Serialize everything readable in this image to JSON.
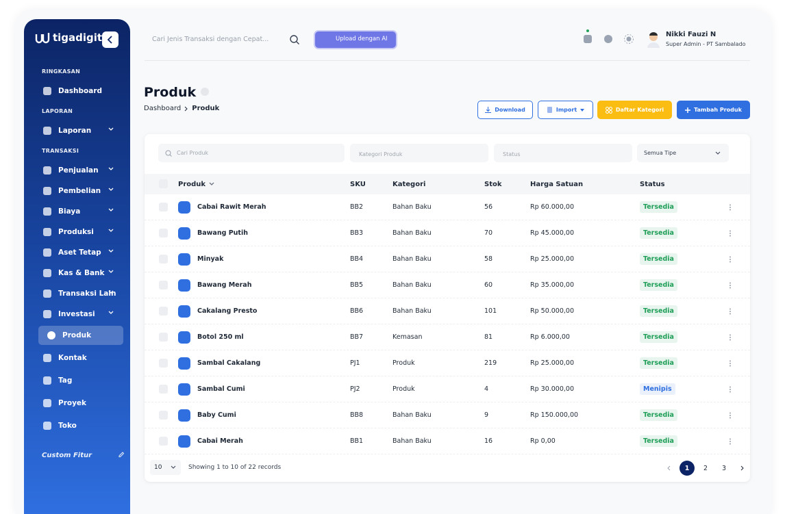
{
  "sidebar": {
    "logo": "tigadigit",
    "groups": [
      {
        "title": "RINGKASAN",
        "items": [
          {
            "label": "Dashboard",
            "submenu": false
          }
        ]
      },
      {
        "title": "LAPORAN",
        "items": [
          {
            "label": "Laporan",
            "submenu": true
          }
        ]
      },
      {
        "title": "TRANSAKSI",
        "items": [
          {
            "label": "Penjualan",
            "submenu": true
          },
          {
            "label": "Pembelian",
            "submenu": true
          },
          {
            "label": "Biaya",
            "submenu": true
          },
          {
            "label": "Produksi",
            "submenu": true
          },
          {
            "label": "Aset Tetap",
            "submenu": true
          },
          {
            "label": "Kas & Bank",
            "submenu": true
          },
          {
            "label": "Transaksi Lain",
            "submenu": true
          },
          {
            "label": "Investasi",
            "submenu": true
          },
          {
            "label": "Produk",
            "submenu": false,
            "active": true
          },
          {
            "label": "Kontak",
            "submenu": false
          },
          {
            "label": "Tag",
            "submenu": false
          },
          {
            "label": "Proyek",
            "submenu": false
          },
          {
            "label": "Toko",
            "submenu": false
          }
        ]
      }
    ],
    "custom": "Custom Fitur"
  },
  "topbar": {
    "search": "Cari Jenis Transaksi dengan Cepat...",
    "ai_button": "Upload dengan AI",
    "user": {
      "name": "Nikki Fauzi N",
      "role": "Super Admin - PT Sambalado"
    }
  },
  "page": {
    "title": "Produk",
    "breadcrumb": [
      "Dashboard",
      "Produk"
    ],
    "actions": [
      "Download",
      "Import",
      "Daftar Kategori",
      "Tambah Produk"
    ]
  },
  "filters": {
    "search": "Cari Produk",
    "category": "Kategori Produk",
    "status": "Status",
    "type": "Semua Tipe"
  },
  "table": {
    "columns": [
      "Produk",
      "SKU",
      "Kategori",
      "Stok",
      "Harga Satuan",
      "Status"
    ],
    "rows": [
      {
        "name": "Cabai Rawit Merah",
        "sku": "BB2",
        "category": "Bahan Baku",
        "stock": 56,
        "price": "Rp 60.000,00",
        "status": "Tersedia",
        "status_color": "#1e9e57"
      },
      {
        "name": "Bawang Putih",
        "sku": "BB3",
        "category": "Bahan Baku",
        "stock": 70,
        "price": "Rp 45.000,00",
        "status": "Tersedia",
        "status_color": "#1e9e57"
      },
      {
        "name": "Minyak",
        "sku": "BB4",
        "category": "Bahan Baku",
        "stock": 58,
        "price": "Rp 25.000,00",
        "status": "Tersedia",
        "status_color": "#1e9e57"
      },
      {
        "name": "Bawang Merah",
        "sku": "BB5",
        "category": "Bahan Baku",
        "stock": 60,
        "price": "Rp 35.000,00",
        "status": "Tersedia",
        "status_color": "#1e9e57"
      },
      {
        "name": "Cakalang Presto",
        "sku": "BB6",
        "category": "Bahan Baku",
        "stock": 101,
        "price": "Rp 50.000,00",
        "status": "Tersedia",
        "status_color": "#1e9e57"
      },
      {
        "name": "Botol 250 ml",
        "sku": "BB7",
        "category": "Kemasan",
        "stock": 81,
        "price": "Rp 6.000,00",
        "status": "Tersedia",
        "status_color": "#1e9e57"
      },
      {
        "name": "Sambal Cakalang",
        "sku": "PJ1",
        "category": "Produk",
        "stock": 219,
        "price": "Rp 25.000,00",
        "status": "Tersedia",
        "status_color": "#1e9e57"
      },
      {
        "name": "Sambal Cumi",
        "sku": "PJ2",
        "category": "Produk",
        "stock": 4,
        "price": "Rp 30.000,00",
        "status": "Menipis",
        "status_color": "#2f6fe0"
      },
      {
        "name": "Baby Cumi",
        "sku": "BB8",
        "category": "Bahan Baku",
        "stock": 9,
        "price": "Rp 150.000,00",
        "status": "Tersedia",
        "status_color": "#1e9e57"
      },
      {
        "name": "Cabai Merah",
        "sku": "BB1",
        "category": "Bahan Baku",
        "stock": 16,
        "price": "Rp 0,00",
        "status": "Tersedia",
        "status_color": "#1e9e57"
      }
    ]
  },
  "footer": {
    "page_size": 10,
    "info": "Showing 1 to 10 of 22 records",
    "pages": [
      1,
      2,
      3
    ],
    "current_page": 1
  }
}
